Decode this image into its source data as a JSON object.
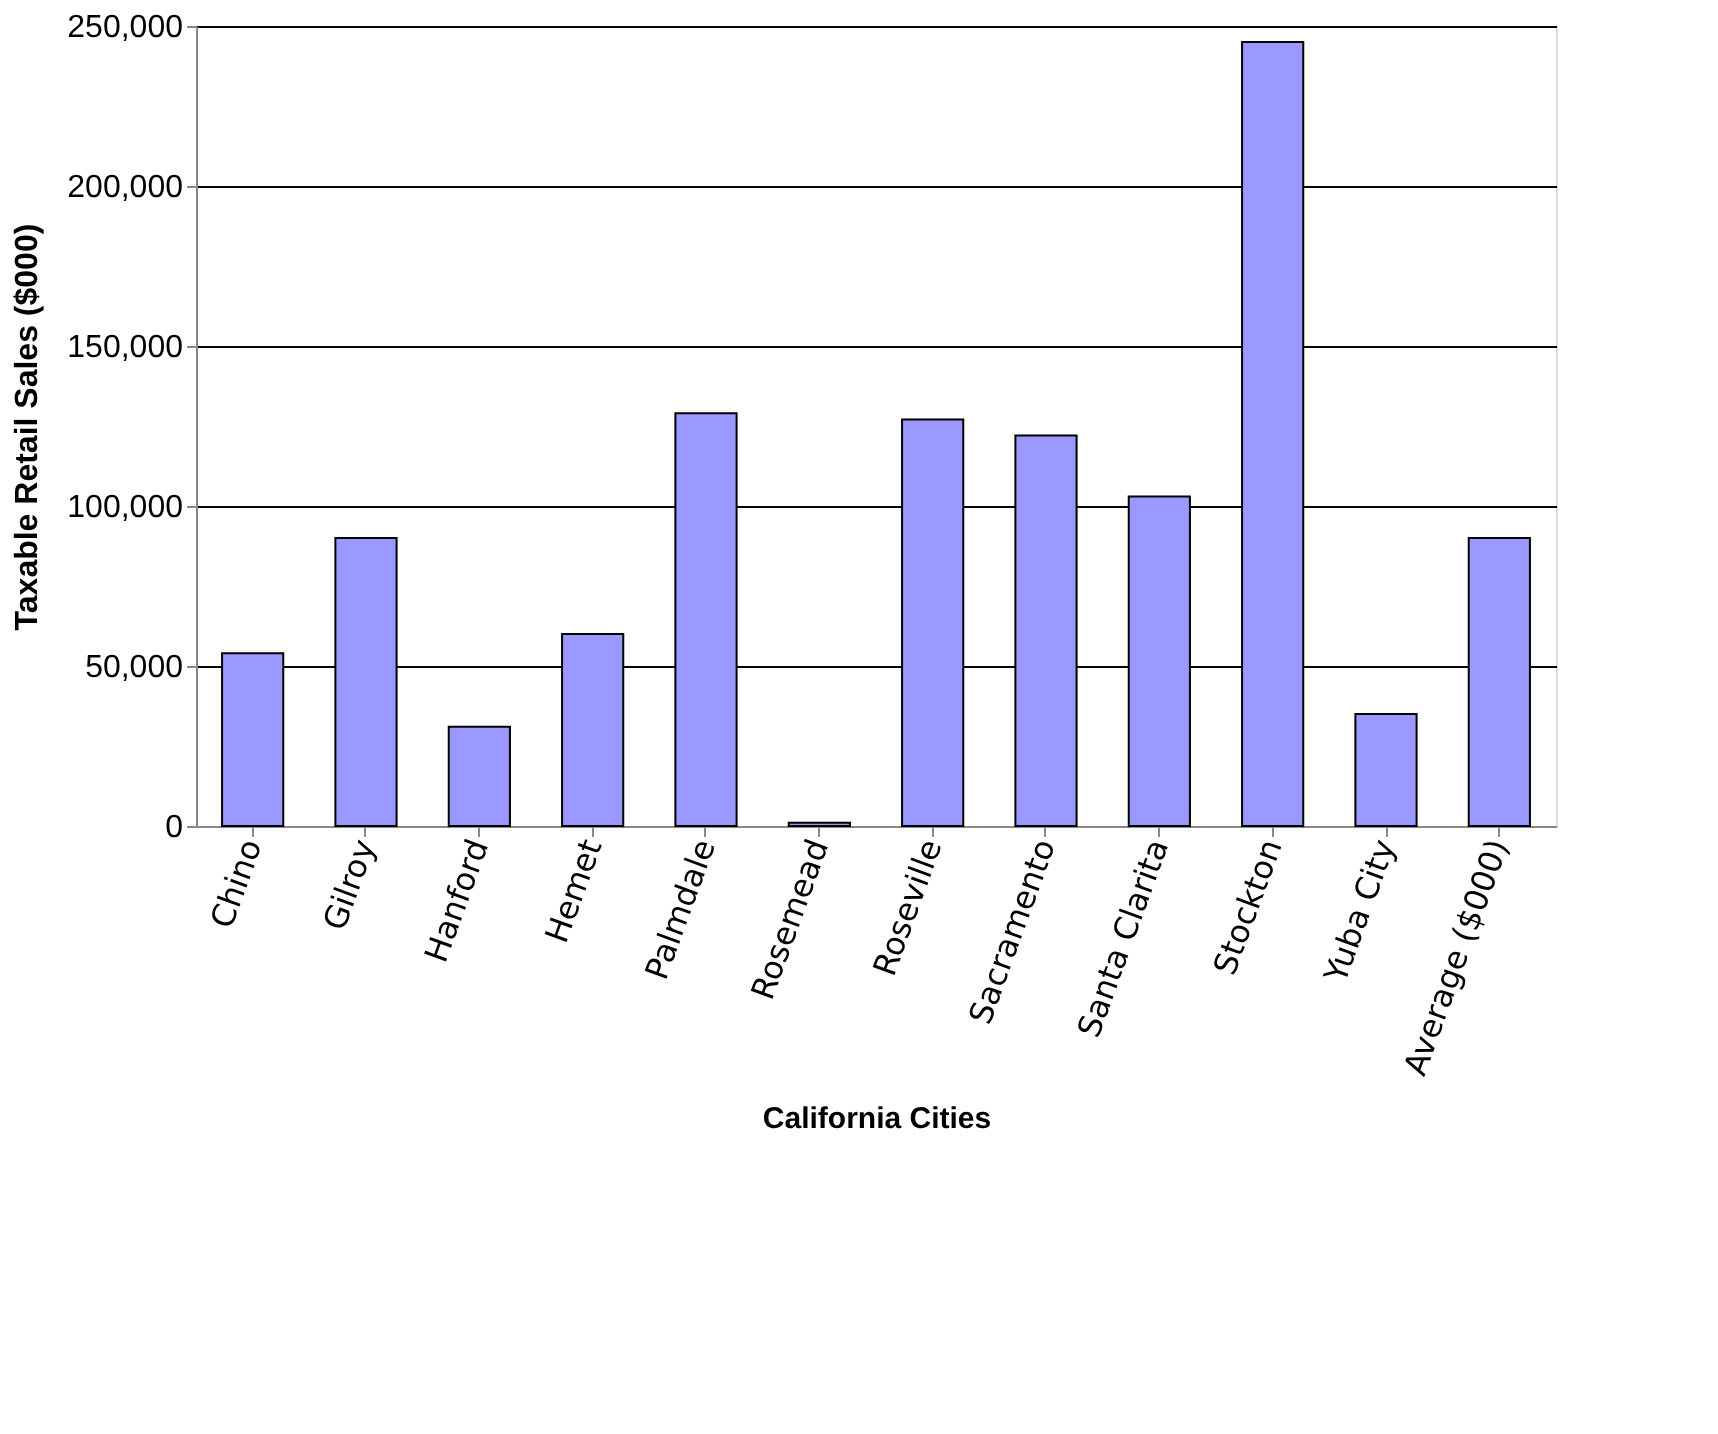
{
  "chart_data": {
    "type": "bar",
    "xlabel": "California Cities",
    "ylabel": "Taxable Retail Sales ($000)",
    "categories": [
      "Chino",
      "Gilroy",
      "Hanford",
      "Hemet",
      "Palmdale",
      "Rosemead",
      "Roseville",
      "Sacramento",
      "Santa Clarita",
      "Stockton",
      "Yuba City",
      "Average ($000)"
    ],
    "values": [
      54000,
      90000,
      31000,
      60000,
      129000,
      1000,
      127000,
      122000,
      103000,
      245000,
      35000,
      90000
    ],
    "color": "#9999ff",
    "ylim": [
      0,
      250000
    ],
    "yticks": [
      0,
      {
        "value": 50000,
        "label": "50,000"
      },
      {
        "value": 100000,
        "label": "100,000"
      },
      {
        "value": 150000,
        "label": "150,000"
      },
      {
        "value": 200000,
        "label": "200,000"
      },
      {
        "value": 250000,
        "label": "250,000"
      }
    ],
    "grid": "y"
  }
}
